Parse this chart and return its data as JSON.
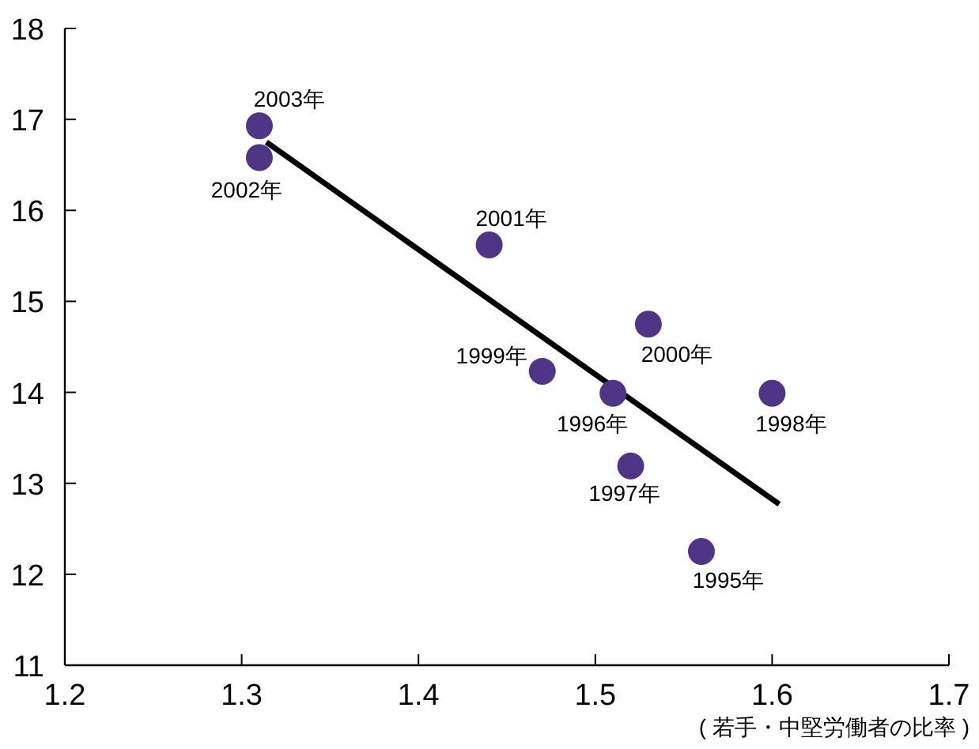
{
  "chart_data": {
    "type": "scatter",
    "xlabel": "( 若手・中堅労働者の比率 )",
    "xlim": [
      1.2,
      1.7
    ],
    "xticks": [
      1.2,
      1.3,
      1.4,
      1.5,
      1.6,
      1.7
    ],
    "ylim": [
      11,
      18
    ],
    "yticks": [
      11,
      12,
      13,
      14,
      15,
      16,
      17,
      18
    ],
    "series": [
      {
        "marker": "circle",
        "color": "#4f3585",
        "x": [
          1.56,
          1.51,
          1.52,
          1.6,
          1.47,
          1.53,
          1.44,
          1.31,
          1.31
        ],
        "values": [
          12.25,
          13.99,
          13.19,
          13.99,
          14.23,
          14.75,
          15.62,
          16.58,
          16.93
        ]
      },
      {
        "type": "line",
        "color": "#000000",
        "x": [
          1.314,
          1.604
        ],
        "values": [
          16.75,
          12.77
        ]
      }
    ],
    "annotations": [
      {
        "text": "1995年",
        "x": 1.56,
        "y": 12.25
      },
      {
        "text": "1996年",
        "x": 1.51,
        "y": 13.99
      },
      {
        "text": "1997年",
        "x": 1.52,
        "y": 13.19
      },
      {
        "text": "1998年",
        "x": 1.6,
        "y": 13.99
      },
      {
        "text": "1999年",
        "x": 1.47,
        "y": 14.23
      },
      {
        "text": "2000年",
        "x": 1.53,
        "y": 14.75
      },
      {
        "text": "2001年",
        "x": 1.44,
        "y": 15.62
      },
      {
        "text": "2002年",
        "x": 1.31,
        "y": 16.58
      },
      {
        "text": "2003年",
        "x": 1.31,
        "y": 16.93
      }
    ]
  }
}
